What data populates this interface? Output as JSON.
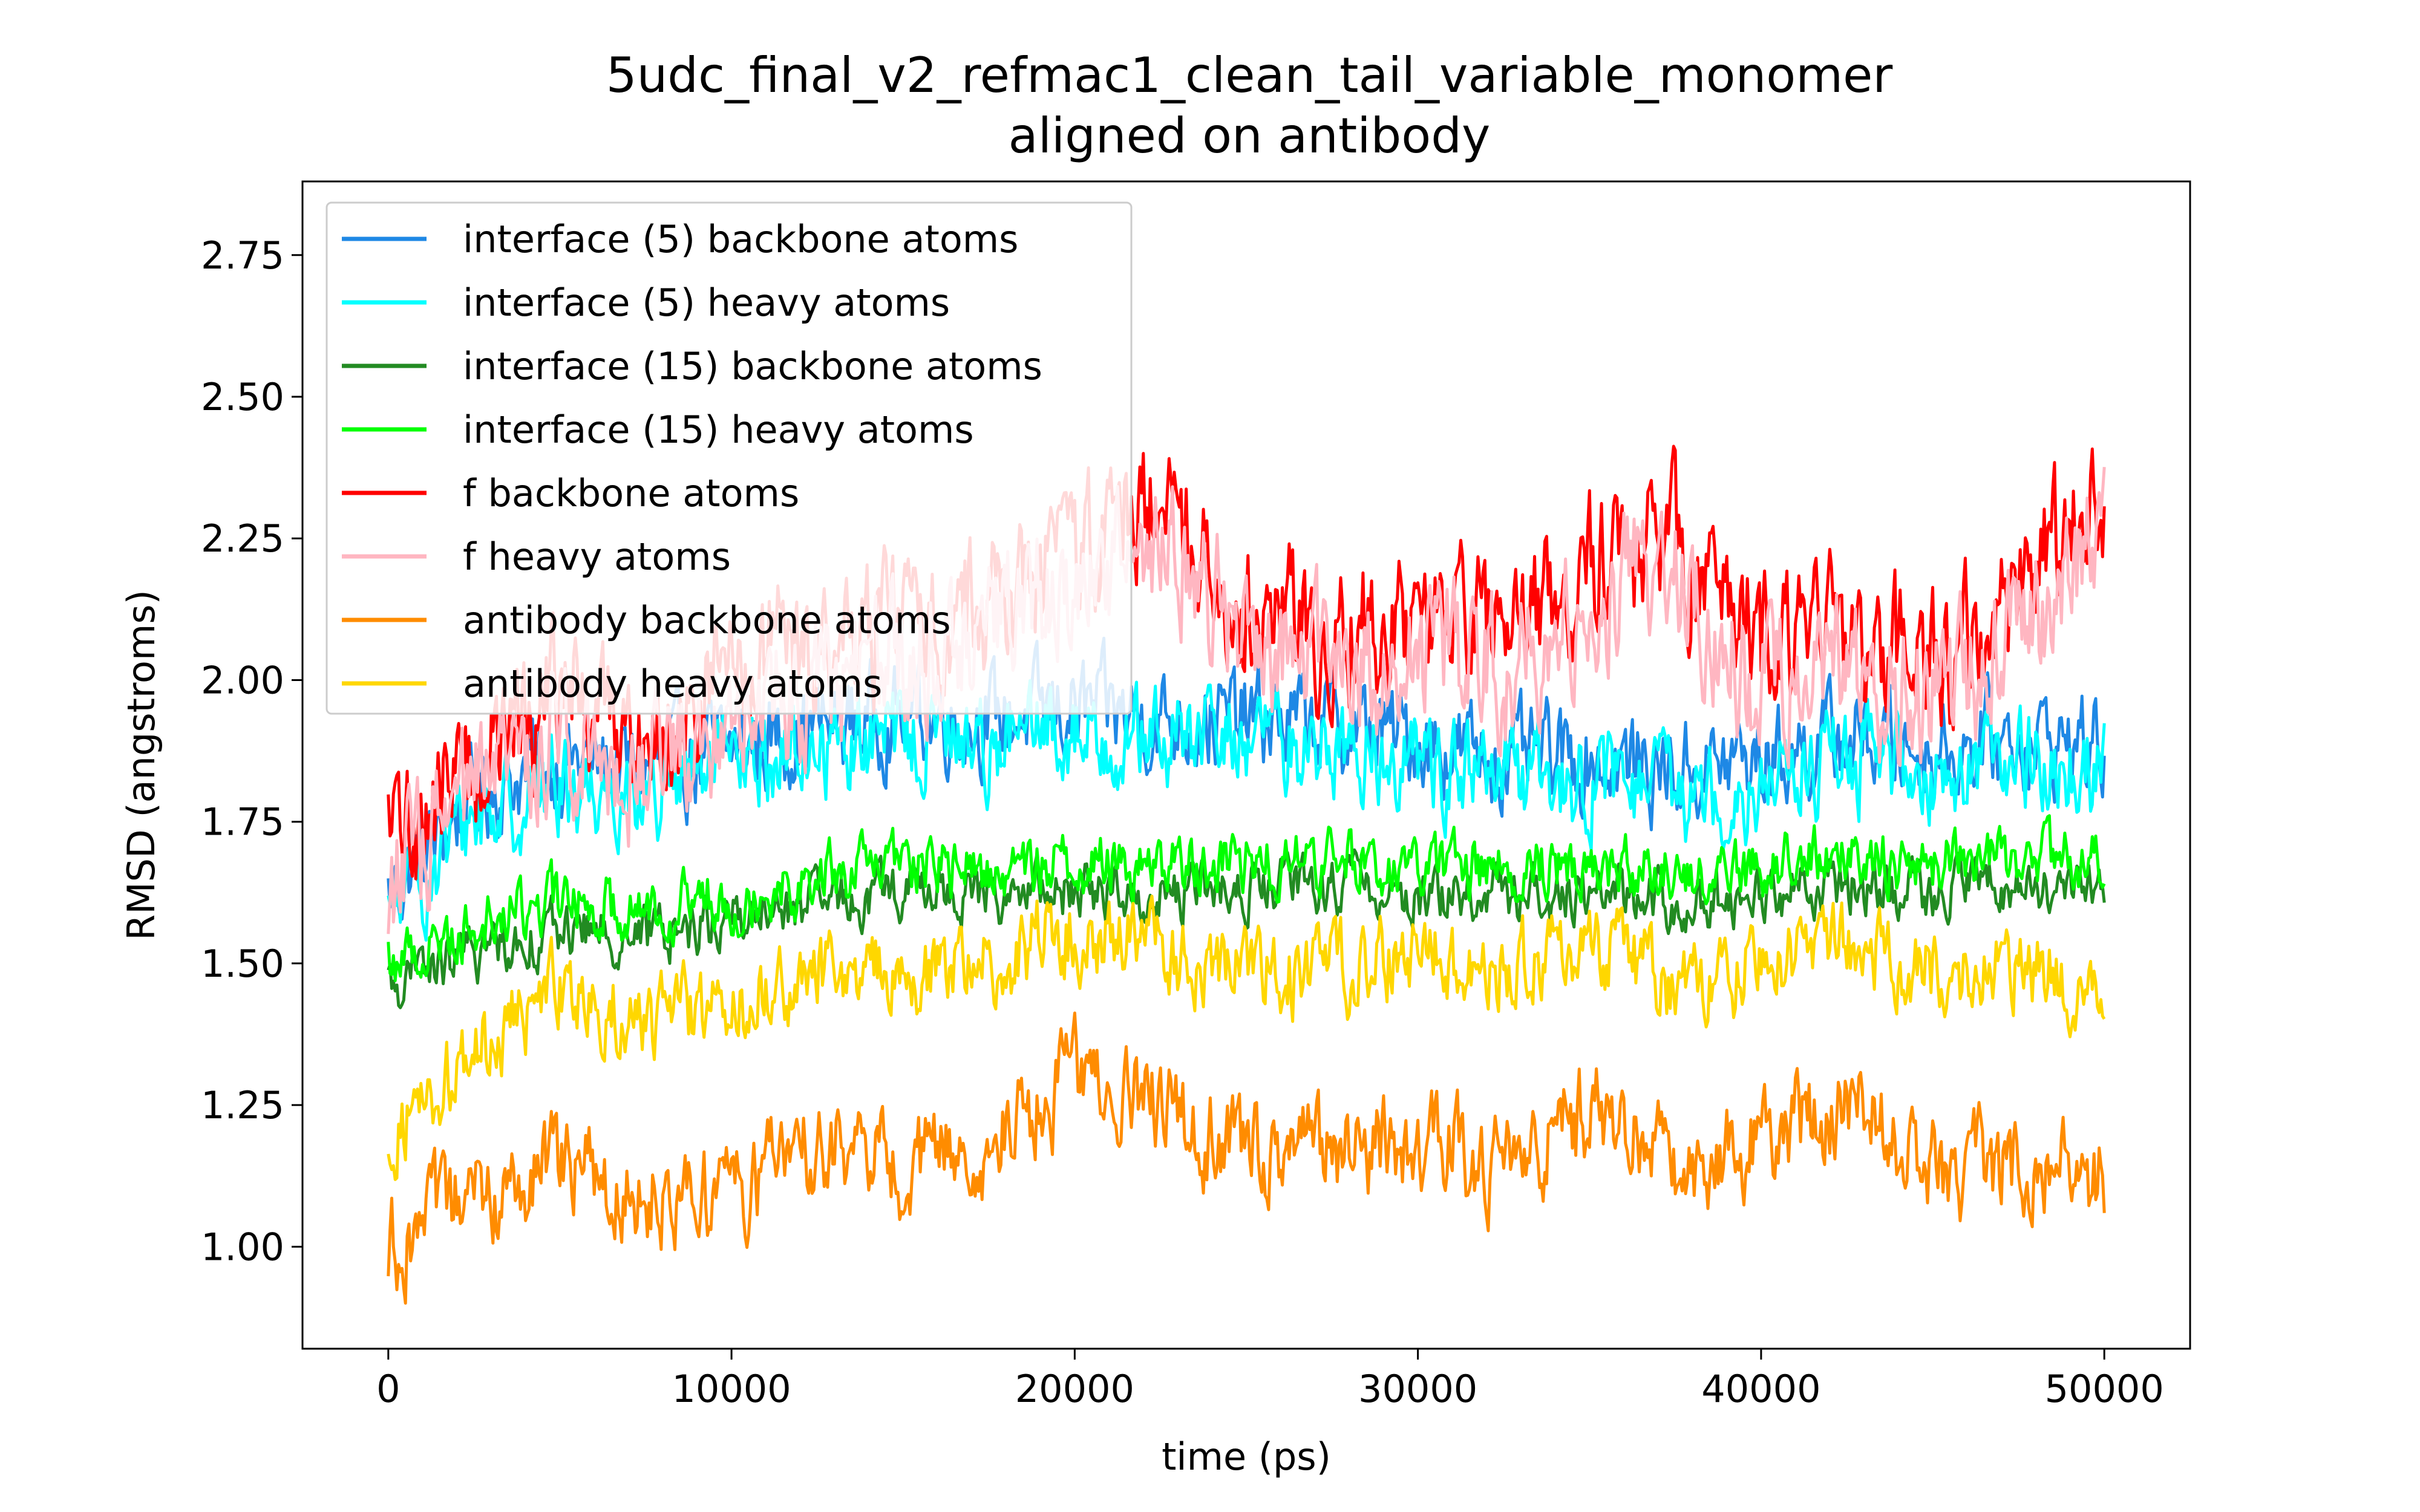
{
  "chart_data": {
    "type": "line",
    "title": "5udc_final_v2_refmac1_clean_tail_variable_monomer",
    "subtitle": "aligned on antibody",
    "xlabel": "time (ps)",
    "ylabel": "RMSD (angstroms)",
    "xlim": [
      -2500,
      52500
    ],
    "ylim": [
      0.82,
      2.88
    ],
    "xticks": [
      "0",
      "10000",
      "20000",
      "30000",
      "40000",
      "50000"
    ],
    "yticks": [
      "1.00",
      "1.25",
      "1.50",
      "1.75",
      "2.00",
      "2.25",
      "2.50",
      "2.75"
    ],
    "grid": false,
    "legend_position": "upper-left",
    "x": [
      0,
      2500,
      5000,
      7500,
      10000,
      12500,
      15000,
      17500,
      20000,
      22500,
      25000,
      27500,
      30000,
      32500,
      35000,
      37500,
      40000,
      42500,
      45000,
      47500,
      50000
    ],
    "series": [
      {
        "name": "interface (5) backbone atoms",
        "color": "#1e88e5",
        "noise": 0.07,
        "values": [
          1.62,
          1.8,
          1.86,
          1.84,
          1.88,
          1.92,
          1.94,
          1.93,
          1.95,
          1.93,
          1.93,
          1.92,
          1.9,
          1.86,
          1.86,
          1.84,
          1.86,
          1.9,
          1.88,
          1.9,
          1.88
        ]
      },
      {
        "name": "interface (5) heavy atoms",
        "color": "#00ffff",
        "noise": 0.07,
        "values": [
          1.58,
          1.76,
          1.82,
          1.8,
          1.84,
          1.88,
          1.9,
          1.89,
          1.91,
          1.89,
          1.9,
          1.88,
          1.86,
          1.82,
          1.82,
          1.8,
          1.82,
          1.86,
          1.84,
          1.86,
          1.84
        ]
      },
      {
        "name": "interface (15) backbone atoms",
        "color": "#228b22",
        "noise": 0.04,
        "values": [
          1.46,
          1.52,
          1.56,
          1.55,
          1.58,
          1.6,
          1.63,
          1.62,
          1.63,
          1.62,
          1.63,
          1.64,
          1.62,
          1.62,
          1.63,
          1.61,
          1.62,
          1.64,
          1.63,
          1.64,
          1.63
        ]
      },
      {
        "name": "interface (15) heavy atoms",
        "color": "#00ff00",
        "noise": 0.045,
        "values": [
          1.5,
          1.57,
          1.61,
          1.6,
          1.62,
          1.65,
          1.68,
          1.66,
          1.68,
          1.67,
          1.68,
          1.68,
          1.67,
          1.67,
          1.68,
          1.66,
          1.67,
          1.69,
          1.68,
          1.69,
          1.67
        ]
      },
      {
        "name": "f backbone atoms",
        "color": "#ff0000",
        "noise": 0.1,
        "values": [
          1.7,
          1.86,
          1.98,
          1.9,
          2.02,
          2.05,
          2.1,
          2.14,
          2.22,
          2.34,
          2.12,
          2.08,
          2.1,
          2.08,
          2.2,
          2.25,
          2.05,
          2.08,
          2.02,
          2.12,
          2.36
        ]
      },
      {
        "name": "f heavy atoms",
        "color": "#ffb6c1",
        "noise": 0.1,
        "values": [
          1.64,
          1.78,
          1.92,
          1.84,
          1.95,
          1.98,
          2.04,
          2.1,
          2.16,
          2.26,
          2.06,
          2.02,
          2.04,
          2.02,
          2.14,
          2.18,
          1.98,
          2.02,
          1.96,
          2.06,
          2.28
        ]
      },
      {
        "name": "antibody backbone atoms",
        "color": "#ff8c00",
        "noise": 0.07,
        "values": [
          1.0,
          1.08,
          1.14,
          1.1,
          1.1,
          1.18,
          1.14,
          1.18,
          1.3,
          1.24,
          1.16,
          1.16,
          1.18,
          1.14,
          1.24,
          1.14,
          1.2,
          1.26,
          1.14,
          1.14,
          1.12
        ]
      },
      {
        "name": "antibody heavy atoms",
        "color": "#ffd700",
        "noise": 0.06,
        "values": [
          1.2,
          1.34,
          1.46,
          1.4,
          1.42,
          1.48,
          1.48,
          1.5,
          1.56,
          1.52,
          1.48,
          1.48,
          1.52,
          1.5,
          1.54,
          1.46,
          1.5,
          1.54,
          1.48,
          1.48,
          1.46
        ]
      }
    ]
  }
}
